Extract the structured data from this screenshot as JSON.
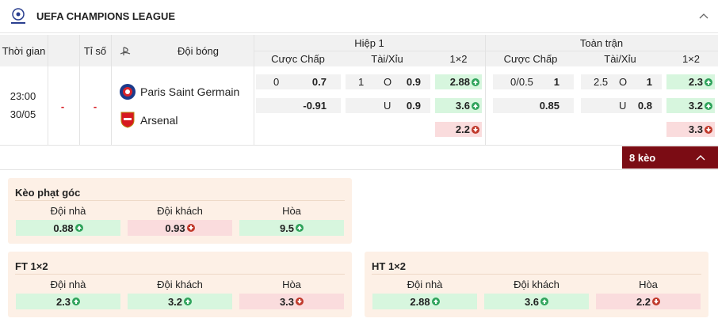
{
  "league": "UEFA CHAMPIONS LEAGUE",
  "table": {
    "headers": {
      "time": "Thời gian",
      "score": "Tỉ số",
      "team": "Đội bóng",
      "half": "Hiệp 1",
      "full": "Toàn trận",
      "half_columns": [
        "Cược Chấp",
        "Tài/Xỉu",
        "1×2"
      ],
      "full_columns": [
        "Cược Chấp",
        "Tài/Xỉu",
        "1×2"
      ]
    },
    "match": {
      "time": "23:00",
      "date": "30/05",
      "home_score": "-",
      "away_score": "-",
      "home": "Paris Saint Germain",
      "away": "Arsenal"
    },
    "half": {
      "handicap": {
        "line": 0,
        "home": 0.7,
        "away": -0.91
      },
      "over_under": {
        "line": 1,
        "over_label": "O",
        "over": 0.9,
        "under_label": "U",
        "under": 0.9
      },
      "x12": [
        {
          "value": 2.88,
          "trend": "up"
        },
        {
          "value": 3.6,
          "trend": "up"
        },
        {
          "value": 2.2,
          "trend": "down"
        }
      ]
    },
    "full": {
      "handicap": {
        "line": "0/0.5",
        "home": 1,
        "away": 0.85
      },
      "over_under": {
        "line": 2.5,
        "over_label": "O",
        "over": 1,
        "under_label": "U",
        "under": 0.8
      },
      "x12": [
        {
          "value": 2.3,
          "trend": "up"
        },
        {
          "value": 3.2,
          "trend": "up"
        },
        {
          "value": 3.3,
          "trend": "down"
        }
      ]
    }
  },
  "more_button": "8 kèo",
  "panels": [
    {
      "title": "Kèo phạt góc",
      "labels": [
        "Đội nhà",
        "Đội khách",
        "Hòa"
      ],
      "odds": [
        {
          "value": 0.88,
          "trend": "up"
        },
        {
          "value": 0.93,
          "trend": "down"
        },
        {
          "value": 9.5,
          "trend": "up"
        }
      ]
    },
    {
      "title": "FT 1×2",
      "labels": [
        "Đội nhà",
        "Đội khách",
        "Hòa"
      ],
      "odds": [
        {
          "value": 2.3,
          "trend": "up"
        },
        {
          "value": 3.2,
          "trend": "up"
        },
        {
          "value": 3.3,
          "trend": "down"
        }
      ]
    },
    {
      "title": "HT 1×2",
      "labels": [
        "Đội nhà",
        "Đội khách",
        "Hòa"
      ],
      "odds": [
        {
          "value": 2.88,
          "trend": "up"
        },
        {
          "value": 3.6,
          "trend": "up"
        },
        {
          "value": 2.2,
          "trend": "down"
        }
      ]
    }
  ]
}
